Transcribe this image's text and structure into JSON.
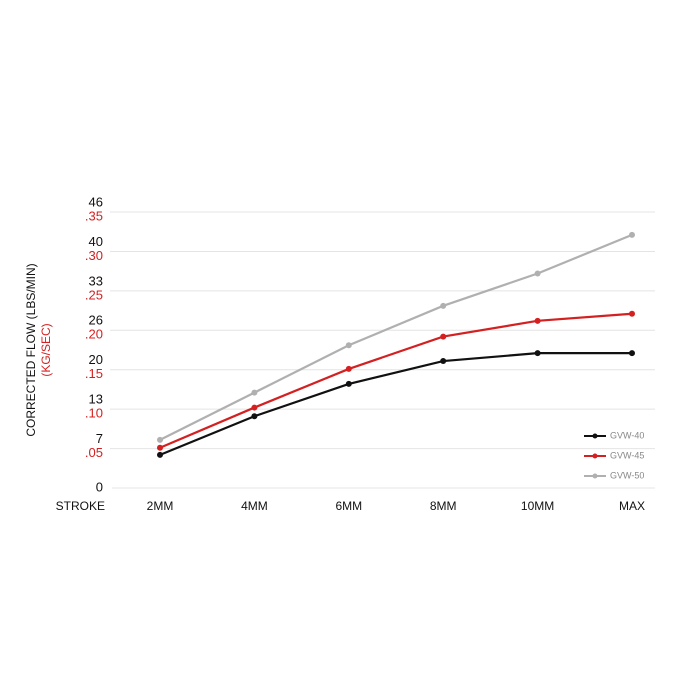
{
  "chart_data": {
    "type": "line",
    "y_axis_label": "CORRECTED FLOW (LBS/MIN)",
    "y2_axis_label": "(KG/SEC)",
    "x_axis_label": "STROKE",
    "categories": [
      "2MM",
      "4MM",
      "6MM",
      "8MM",
      "10MM",
      "MAX"
    ],
    "series": [
      {
        "name": "GVW-40",
        "color": "#111111",
        "values": [
          0.042,
          0.091,
          0.132,
          0.161,
          0.171,
          0.171
        ]
      },
      {
        "name": "GVW-45",
        "color": "#d42020",
        "values": [
          0.051,
          0.102,
          0.151,
          0.192,
          0.212,
          0.221
        ]
      },
      {
        "name": "GVW-50",
        "color": "#b0b0b0",
        "values": [
          0.061,
          0.121,
          0.181,
          0.231,
          0.272,
          0.321
        ]
      }
    ],
    "ylim": [
      0,
      0.35
    ],
    "yticks": [
      {
        "value": 0.05,
        "label": ".05"
      },
      {
        "value": 0.1,
        "label": ".10"
      },
      {
        "value": 0.15,
        "label": ".15"
      },
      {
        "value": 0.2,
        "label": ".20"
      },
      {
        "value": 0.25,
        "label": ".25"
      },
      {
        "value": 0.3,
        "label": ".30"
      },
      {
        "value": 0.35,
        "label": ".35"
      }
    ],
    "y2lim": [
      0,
      46.3
    ],
    "y2ticks": [
      0,
      {
        "value": 6.61,
        "label": "7"
      },
      {
        "value": 13.23,
        "label": "13"
      },
      {
        "value": 19.84,
        "label": "20"
      },
      {
        "value": 26.46,
        "label": "26"
      },
      {
        "value": 33.07,
        "label": "33"
      },
      {
        "value": 39.68,
        "label": "40"
      },
      {
        "value": 46.3,
        "label": "46"
      }
    ],
    "y2_tick_color": "#111111",
    "ytick_color": "#d42020",
    "grid": true,
    "legend": "lower right"
  }
}
